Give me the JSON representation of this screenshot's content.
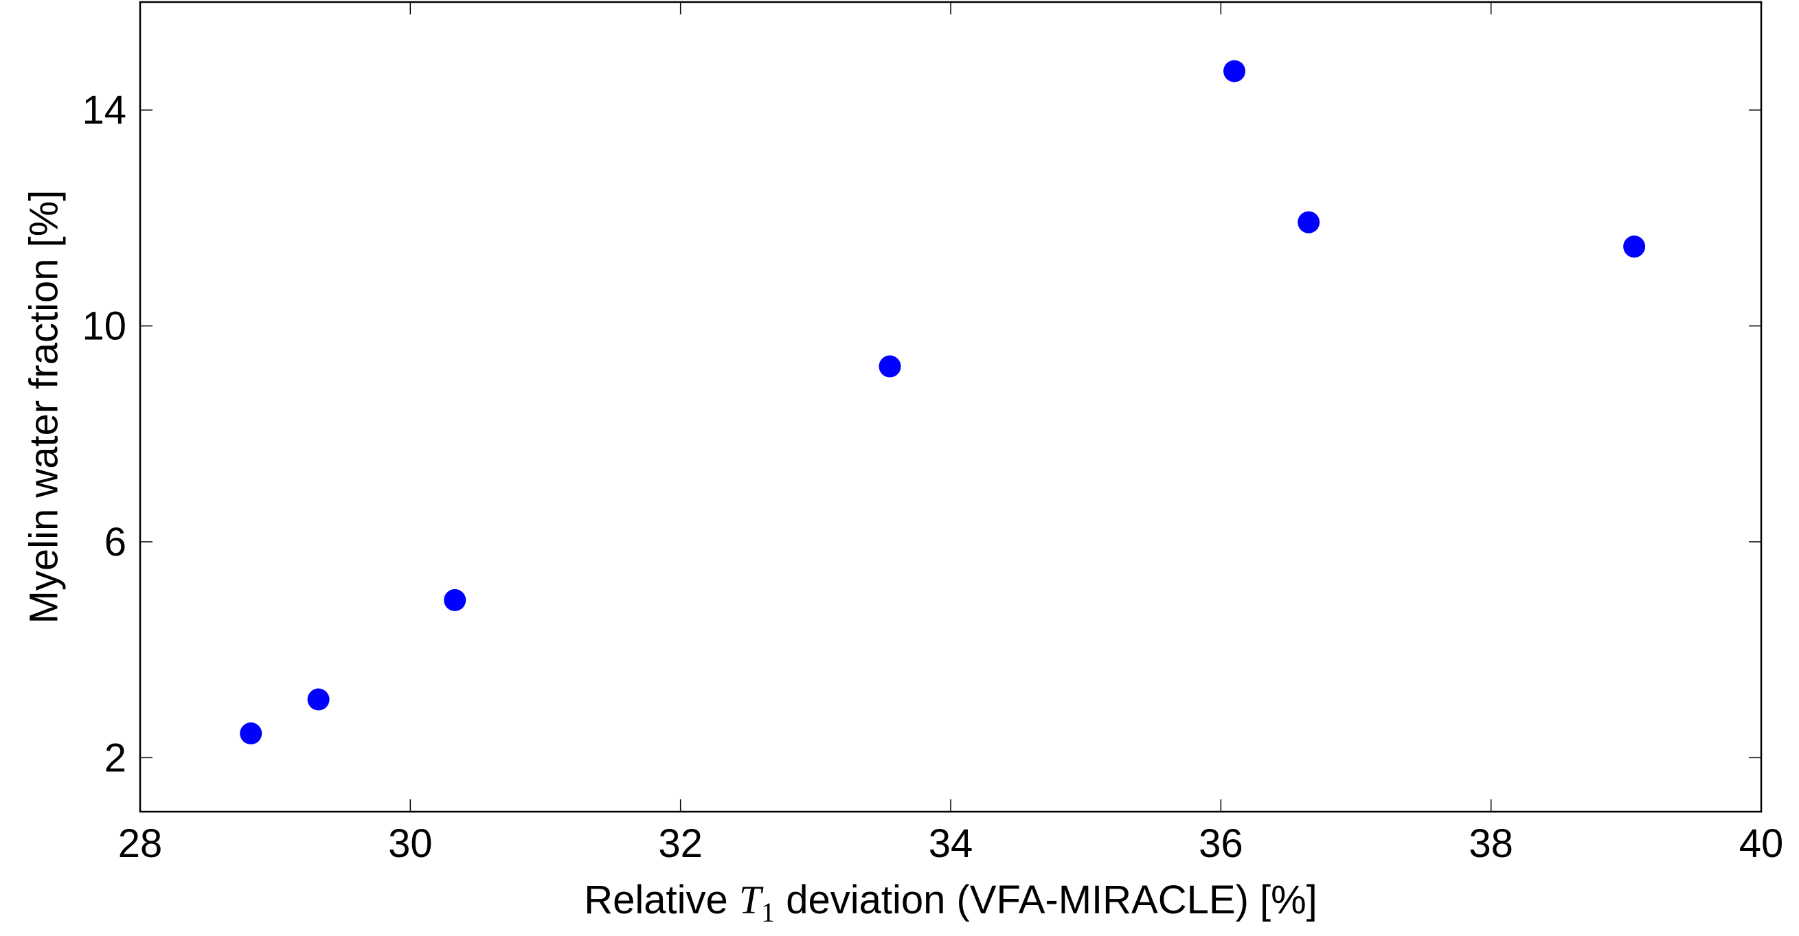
{
  "chart_data": {
    "type": "scatter",
    "title": "",
    "xlabel": {
      "before": "Relative ",
      "math_var": "T",
      "math_sub": "1",
      "after": " deviation (VFA-MIRACLE) [%]"
    },
    "ylabel": "Myelin water fraction [%]",
    "xlim": [
      28,
      40
    ],
    "ylim": [
      1,
      16
    ],
    "xticks": [
      28,
      30,
      32,
      34,
      36,
      38,
      40
    ],
    "yticks": [
      2,
      6,
      10,
      14
    ],
    "xtick_labels": [
      "28",
      "30",
      "32",
      "34",
      "36",
      "38",
      "40"
    ],
    "ytick_labels": [
      "2",
      "6",
      "10",
      "14"
    ],
    "grid": false,
    "marker_color": "#0000ff",
    "series": [
      {
        "name": "",
        "x": [
          28.82,
          29.32,
          30.33,
          33.55,
          36.1,
          36.65,
          39.06
        ],
        "y": [
          2.45,
          3.08,
          4.92,
          9.25,
          14.72,
          11.92,
          11.47
        ]
      }
    ]
  }
}
